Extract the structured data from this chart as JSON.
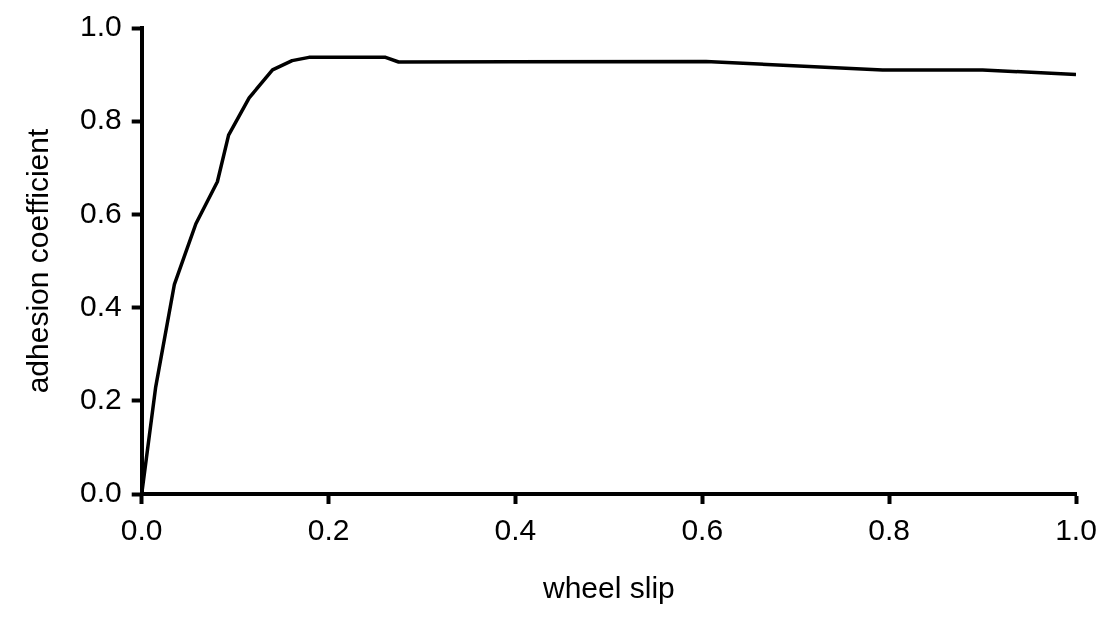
{
  "chart_data": {
    "type": "line",
    "xlabel": "wheel slip",
    "ylabel": "adhesion coefficient",
    "x": [
      0,
      0.015,
      0.035,
      0.058,
      0.081,
      0.093,
      0.115,
      0.14,
      0.161,
      0.179,
      0.261,
      0.275,
      0.604,
      0.793,
      0.9,
      1.0
    ],
    "series": [
      {
        "color": "#000000",
        "values": [
          0,
          0.23,
          0.45,
          0.58,
          0.67,
          0.77,
          0.85,
          0.91,
          0.93,
          0.937,
          0.937,
          0.927,
          0.928,
          0.91,
          0.91,
          0.9
        ]
      }
    ],
    "xlim": [
      0,
      1
    ],
    "xticks": [
      {
        "value": 0,
        "label": "0.0"
      },
      0.2,
      0.4,
      0.6,
      0.8,
      {
        "value": 1,
        "label": "1.0"
      }
    ],
    "ylim": [
      0,
      1
    ],
    "yticks": [
      {
        "value": 0,
        "label": "0.0"
      },
      0.2,
      0.4,
      0.6,
      0.8,
      {
        "value": 1,
        "label": "1.0"
      }
    ],
    "grid": false,
    "legend": false,
    "marker": "none",
    "line_style": "solid"
  }
}
